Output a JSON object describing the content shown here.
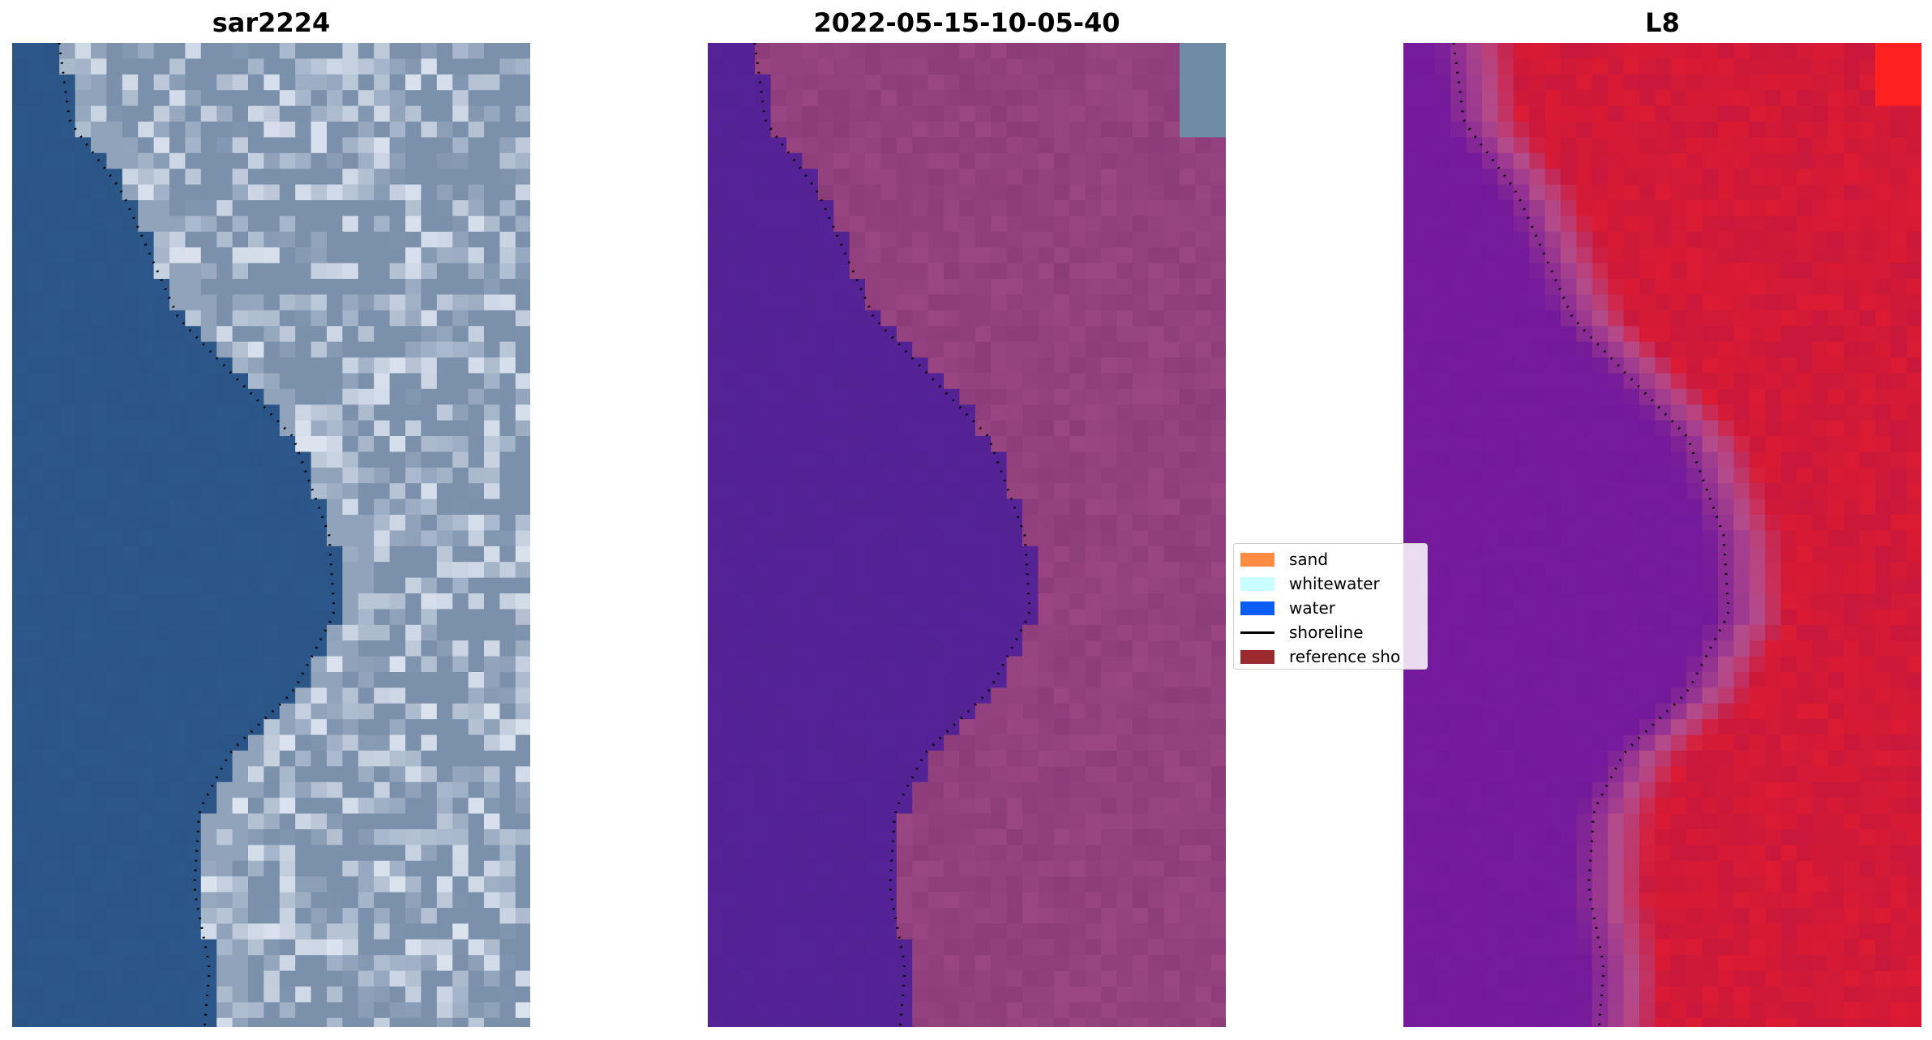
{
  "panels": [
    {
      "title": "sar2224",
      "colors": {
        "water": "#2b5587",
        "land": "#7a90ab",
        "highlight": "#e8eef8"
      }
    },
    {
      "title": "2022-05-15-10-05-40",
      "colors": {
        "water": "#532293",
        "land": "#8c3c79",
        "highlight": "#b35a95",
        "sea_patch": "#6e8ca6"
      }
    },
    {
      "title": "L8",
      "colors": {
        "water": "#731a9a",
        "land": "#c8183c",
        "transition": "#b34a8a",
        "highlight": "#ff2020"
      }
    }
  ],
  "legend": {
    "items": [
      {
        "label": "sand",
        "type": "patch",
        "color": "#ff8c42"
      },
      {
        "label": "whitewater",
        "type": "patch",
        "color": "#c9ffff"
      },
      {
        "label": "water",
        "type": "patch",
        "color": "#0a5cf2"
      },
      {
        "label": "shoreline",
        "type": "line",
        "color": "#000000"
      },
      {
        "label": "reference sho",
        "type": "patch",
        "color": "#9b2a2f"
      }
    ]
  }
}
